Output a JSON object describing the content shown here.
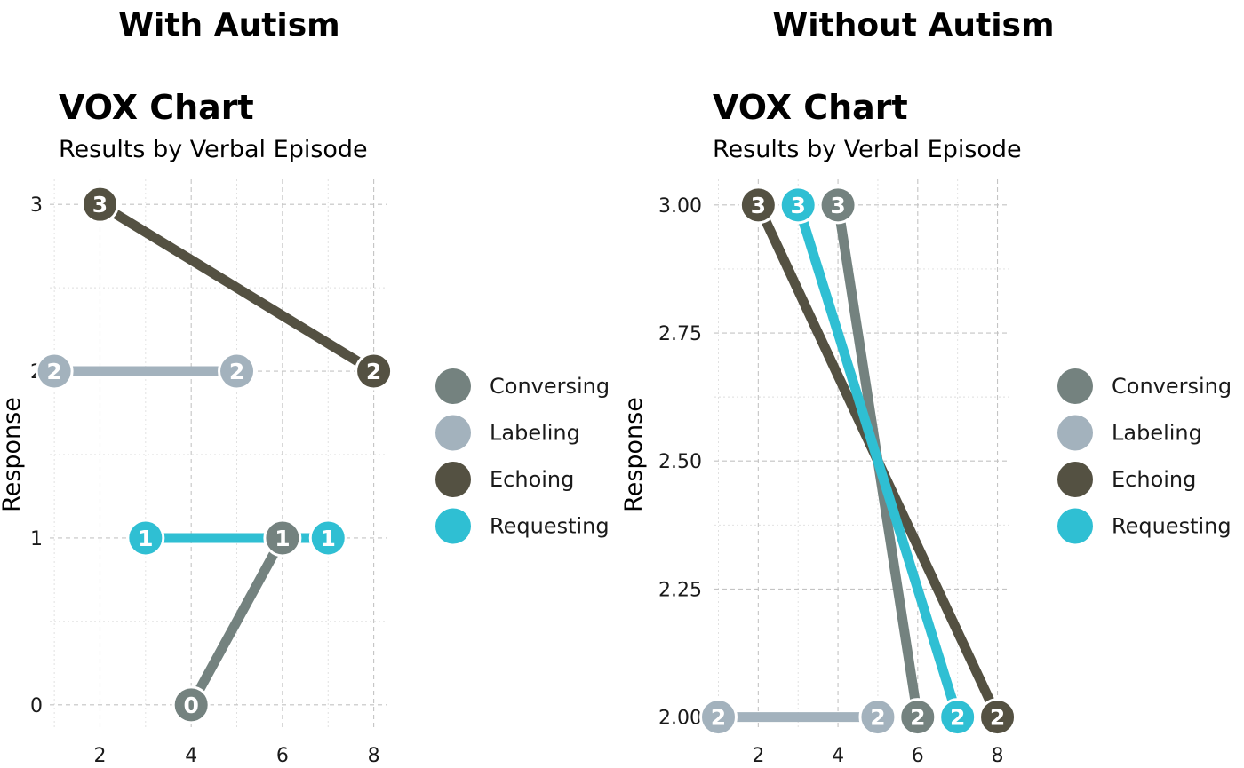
{
  "panels": [
    {
      "heading": "With Autism",
      "chart_title": "VOX Chart",
      "chart_subtitle": "Results by Verbal Episode",
      "ylabel": "Response"
    },
    {
      "heading": "Without Autism",
      "chart_title": "VOX Chart",
      "chart_subtitle": "Results by Verbal Episode",
      "ylabel": "Response"
    }
  ],
  "chart_data": [
    {
      "type": "line",
      "title": "VOX Chart",
      "subtitle": "Results by Verbal Episode",
      "xlabel": "",
      "ylabel": "Response",
      "xlim": [
        0.9,
        8.3
      ],
      "ylim": [
        -0.15,
        3.15
      ],
      "x_ticks": [
        2,
        4,
        6,
        8
      ],
      "x_tick_labels": [
        "2",
        "4",
        "6",
        "8"
      ],
      "y_ticks": [
        0,
        1,
        2,
        3
      ],
      "y_tick_labels": [
        "0",
        "1",
        "2",
        "3"
      ],
      "grid": true,
      "legend_position": "right",
      "series": [
        {
          "name": "Conversing",
          "color": "#74827f",
          "points": [
            {
              "x": 4,
              "y": 0,
              "label": "0"
            },
            {
              "x": 6,
              "y": 1,
              "label": "1"
            }
          ]
        },
        {
          "name": "Labeling",
          "color": "#a3b2bd",
          "points": [
            {
              "x": 1,
              "y": 2,
              "label": "2"
            },
            {
              "x": 5,
              "y": 2,
              "label": "2"
            }
          ]
        },
        {
          "name": "Echoing",
          "color": "#545142",
          "points": [
            {
              "x": 2,
              "y": 3,
              "label": "3"
            },
            {
              "x": 8,
              "y": 2,
              "label": "2"
            }
          ]
        },
        {
          "name": "Requesting",
          "color": "#2fbfd3",
          "points": [
            {
              "x": 3,
              "y": 1,
              "label": "1"
            },
            {
              "x": 7,
              "y": 1,
              "label": "1"
            }
          ]
        }
      ]
    },
    {
      "type": "line",
      "title": "VOX Chart",
      "subtitle": "Results by Verbal Episode",
      "xlabel": "",
      "ylabel": "Response",
      "xlim": [
        0.9,
        8.3
      ],
      "ylim": [
        1.975,
        3.05
      ],
      "x_ticks": [
        2,
        4,
        6,
        8
      ],
      "x_tick_labels": [
        "2",
        "4",
        "6",
        "8"
      ],
      "y_ticks": [
        2.0,
        2.25,
        2.5,
        2.75,
        3.0
      ],
      "y_tick_labels": [
        "2.00",
        "2.25",
        "2.50",
        "2.75",
        "3.00"
      ],
      "grid": true,
      "legend_position": "right",
      "series": [
        {
          "name": "Conversing",
          "color": "#74827f",
          "points": [
            {
              "x": 4,
              "y": 3,
              "label": "3"
            },
            {
              "x": 6,
              "y": 2,
              "label": "2"
            }
          ]
        },
        {
          "name": "Labeling",
          "color": "#a3b2bd",
          "points": [
            {
              "x": 1,
              "y": 2,
              "label": "2"
            },
            {
              "x": 5,
              "y": 2,
              "label": "2"
            }
          ]
        },
        {
          "name": "Echoing",
          "color": "#545142",
          "points": [
            {
              "x": 2,
              "y": 3,
              "label": "3"
            },
            {
              "x": 8,
              "y": 2,
              "label": "2"
            }
          ]
        },
        {
          "name": "Requesting",
          "color": "#2fbfd3",
          "points": [
            {
              "x": 3,
              "y": 3,
              "label": "3"
            },
            {
              "x": 7,
              "y": 2,
              "label": "2"
            }
          ]
        }
      ]
    }
  ]
}
